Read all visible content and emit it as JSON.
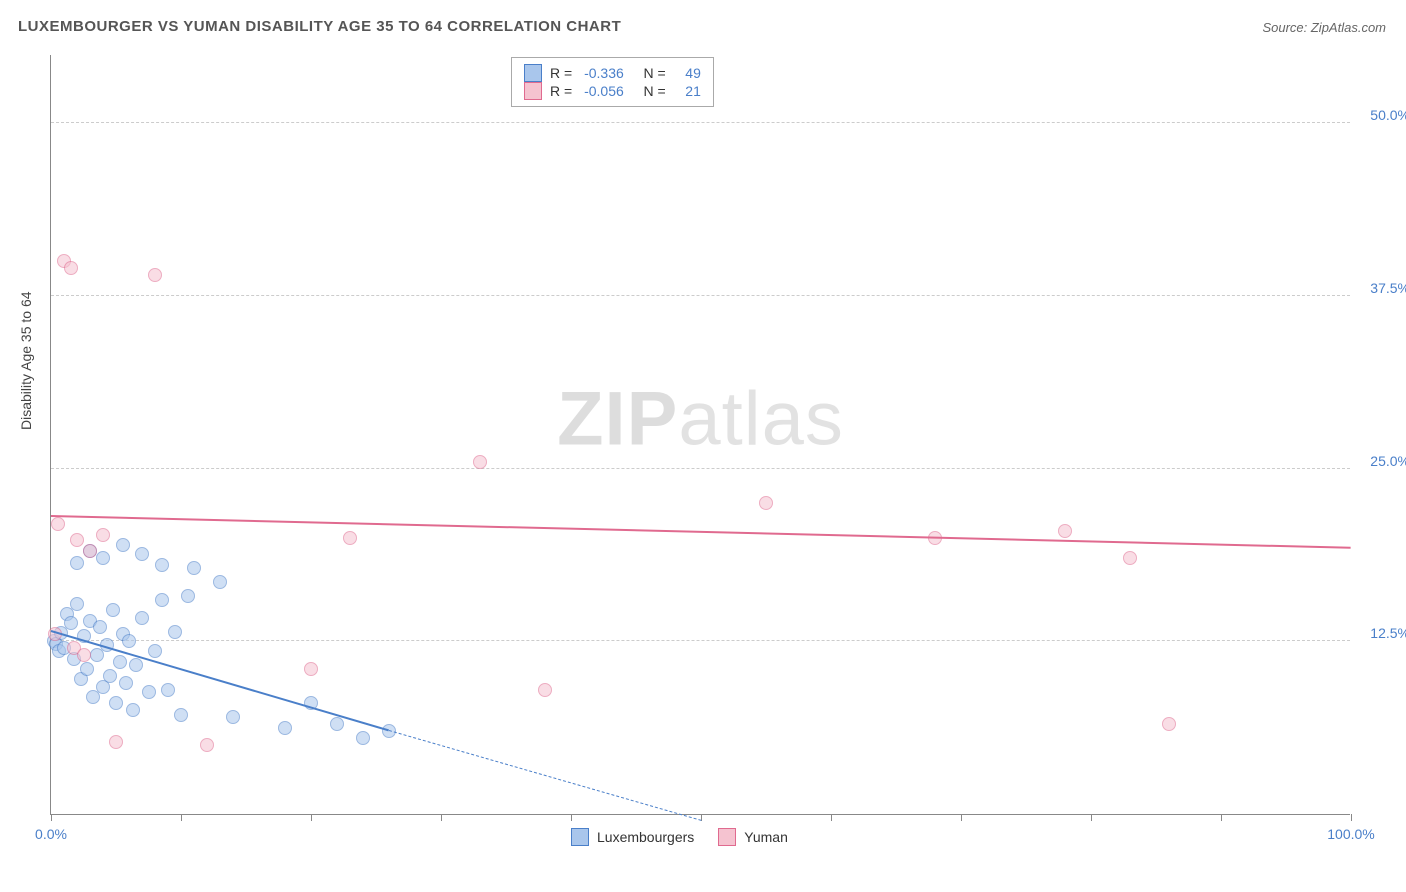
{
  "title": "LUXEMBOURGER VS YUMAN DISABILITY AGE 35 TO 64 CORRELATION CHART",
  "source": "Source: ZipAtlas.com",
  "ylabel": "Disability Age 35 to 64",
  "watermark_bold": "ZIP",
  "watermark_light": "atlas",
  "chart": {
    "type": "scatter",
    "xlim": [
      0,
      100
    ],
    "ylim": [
      0,
      55
    ],
    "xtick_label_left": "0.0%",
    "xtick_label_right": "100.0%",
    "xticks": [
      0,
      10,
      20,
      30,
      40,
      50,
      60,
      70,
      80,
      90,
      100
    ],
    "yticks": [
      {
        "v": 12.5,
        "label": "12.5%"
      },
      {
        "v": 25.0,
        "label": "25.0%"
      },
      {
        "v": 37.5,
        "label": "37.5%"
      },
      {
        "v": 50.0,
        "label": "50.0%"
      }
    ],
    "grid_color": "#cccccc",
    "background_color": "#ffffff",
    "point_radius": 7,
    "point_opacity": 0.55,
    "series": [
      {
        "name": "Luxembourgers",
        "color_fill": "#a9c6ec",
        "color_stroke": "#4a7fc9",
        "R": "-0.336",
        "N": "49",
        "trend": {
          "x1": 0,
          "y1": 13.2,
          "x2": 26,
          "y2": 6.0,
          "ext_x2": 50,
          "ext_y2": -0.5
        },
        "points": [
          [
            0.2,
            12.5
          ],
          [
            0.4,
            12.3
          ],
          [
            0.6,
            11.8
          ],
          [
            0.8,
            13.1
          ],
          [
            1.0,
            12.0
          ],
          [
            1.2,
            14.5
          ],
          [
            1.5,
            13.8
          ],
          [
            1.8,
            11.2
          ],
          [
            2.0,
            15.2
          ],
          [
            2.3,
            9.8
          ],
          [
            2.5,
            12.9
          ],
          [
            2.8,
            10.5
          ],
          [
            3.0,
            14.0
          ],
          [
            3.2,
            8.5
          ],
          [
            3.5,
            11.5
          ],
          [
            3.8,
            13.5
          ],
          [
            4.0,
            9.2
          ],
          [
            4.3,
            12.2
          ],
          [
            4.5,
            10.0
          ],
          [
            4.8,
            14.8
          ],
          [
            5.0,
            8.0
          ],
          [
            5.3,
            11.0
          ],
          [
            5.5,
            13.0
          ],
          [
            5.8,
            9.5
          ],
          [
            6.0,
            12.5
          ],
          [
            6.3,
            7.5
          ],
          [
            6.5,
            10.8
          ],
          [
            7.0,
            14.2
          ],
          [
            7.5,
            8.8
          ],
          [
            8.0,
            11.8
          ],
          [
            8.5,
            15.5
          ],
          [
            9.0,
            9.0
          ],
          [
            9.5,
            13.2
          ],
          [
            10.0,
            7.2
          ],
          [
            3.0,
            19.0
          ],
          [
            4.0,
            18.5
          ],
          [
            5.5,
            19.5
          ],
          [
            7.0,
            18.8
          ],
          [
            2.0,
            18.2
          ],
          [
            11.0,
            17.8
          ],
          [
            8.5,
            18.0
          ],
          [
            13.0,
            16.8
          ],
          [
            14.0,
            7.0
          ],
          [
            18.0,
            6.2
          ],
          [
            20.0,
            8.0
          ],
          [
            22.0,
            6.5
          ],
          [
            24.0,
            5.5
          ],
          [
            26.0,
            6.0
          ],
          [
            10.5,
            15.8
          ]
        ]
      },
      {
        "name": "Yuman",
        "color_fill": "#f5c3d0",
        "color_stroke": "#e06a8f",
        "R": "-0.056",
        "N": "21",
        "trend": {
          "x1": 0,
          "y1": 21.5,
          "x2": 100,
          "y2": 19.2
        },
        "points": [
          [
            1.0,
            40.0
          ],
          [
            1.5,
            39.5
          ],
          [
            8.0,
            39.0
          ],
          [
            0.5,
            21.0
          ],
          [
            2.0,
            19.8
          ],
          [
            3.0,
            19.0
          ],
          [
            4.0,
            20.2
          ],
          [
            0.3,
            13.0
          ],
          [
            1.8,
            12.0
          ],
          [
            2.5,
            11.5
          ],
          [
            5.0,
            5.2
          ],
          [
            12.0,
            5.0
          ],
          [
            20.0,
            10.5
          ],
          [
            23.0,
            20.0
          ],
          [
            33.0,
            25.5
          ],
          [
            38.0,
            9.0
          ],
          [
            55.0,
            22.5
          ],
          [
            68.0,
            20.0
          ],
          [
            78.0,
            20.5
          ],
          [
            83.0,
            18.5
          ],
          [
            86.0,
            6.5
          ]
        ]
      }
    ],
    "legend_bottom": [
      {
        "label": "Luxembourgers",
        "fill": "#a9c6ec",
        "stroke": "#4a7fc9"
      },
      {
        "label": "Yuman",
        "fill": "#f5c3d0",
        "stroke": "#e06a8f"
      }
    ]
  }
}
